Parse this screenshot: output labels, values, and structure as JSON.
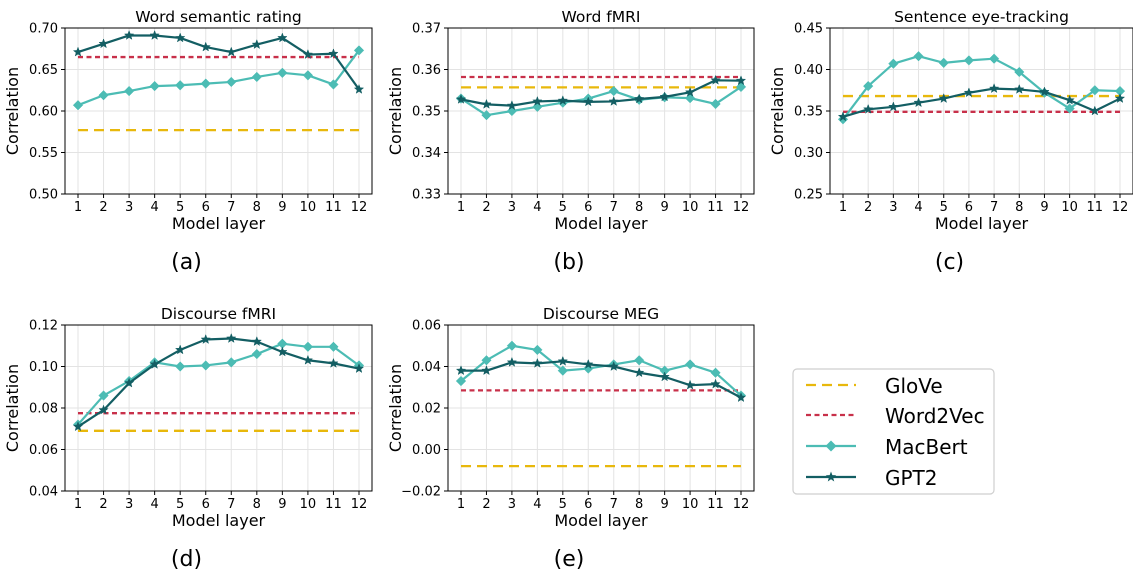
{
  "colors": {
    "glove": "#e8b80c",
    "word2vec": "#c8304a",
    "macbert": "#4cbcb4",
    "gpt2": "#135e63",
    "grid": "#e3e3e3"
  },
  "legend": [
    "GloVe",
    "Word2Vec",
    "MacBert",
    "GPT2"
  ],
  "chart_data": [
    {
      "type": "line",
      "title": "Word semantic rating",
      "panel_label": "(a)",
      "xlabel": "Model layer",
      "ylabel": "Correlation",
      "x": [
        1,
        2,
        3,
        4,
        5,
        6,
        7,
        8,
        9,
        10,
        11,
        12
      ],
      "ylim": [
        0.5,
        0.7
      ],
      "yticks": [
        "0.50",
        "0.55",
        "0.60",
        "0.65",
        "0.70"
      ],
      "grid": true,
      "series": [
        {
          "name": "GloVe",
          "style": "dashed",
          "values": [
            0.577,
            0.577,
            0.577,
            0.577,
            0.577,
            0.577,
            0.577,
            0.577,
            0.577,
            0.577,
            0.577,
            0.577
          ]
        },
        {
          "name": "Word2Vec",
          "style": "dashed",
          "values": [
            0.665,
            0.665,
            0.665,
            0.665,
            0.665,
            0.665,
            0.665,
            0.665,
            0.665,
            0.665,
            0.665,
            0.665
          ]
        },
        {
          "name": "MacBert",
          "marker": "diamond",
          "values": [
            0.607,
            0.619,
            0.624,
            0.63,
            0.631,
            0.633,
            0.635,
            0.641,
            0.646,
            0.643,
            0.632,
            0.673
          ]
        },
        {
          "name": "GPT2",
          "marker": "star",
          "values": [
            0.671,
            0.681,
            0.691,
            0.691,
            0.688,
            0.677,
            0.671,
            0.68,
            0.688,
            0.668,
            0.669,
            0.626
          ]
        }
      ]
    },
    {
      "type": "line",
      "title": "Word fMRI",
      "panel_label": "(b)",
      "xlabel": "Model layer",
      "ylabel": "Correlation",
      "x": [
        1,
        2,
        3,
        4,
        5,
        6,
        7,
        8,
        9,
        10,
        11,
        12
      ],
      "ylim": [
        0.33,
        0.37
      ],
      "yticks": [
        "0.33",
        "0.34",
        "0.35",
        "0.36",
        "0.37"
      ],
      "grid": true,
      "series": [
        {
          "name": "GloVe",
          "style": "dashed",
          "values": [
            0.3557,
            0.3557,
            0.3557,
            0.3557,
            0.3557,
            0.3557,
            0.3557,
            0.3557,
            0.3557,
            0.3557,
            0.3557,
            0.3557
          ]
        },
        {
          "name": "Word2Vec",
          "style": "dashed",
          "values": [
            0.3582,
            0.3582,
            0.3582,
            0.3582,
            0.3582,
            0.3582,
            0.3582,
            0.3582,
            0.3582,
            0.3582,
            0.3582,
            0.3582
          ]
        },
        {
          "name": "MacBert",
          "marker": "diamond",
          "values": [
            0.353,
            0.349,
            0.35,
            0.351,
            0.352,
            0.353,
            0.3548,
            0.3527,
            0.3533,
            0.3531,
            0.3517,
            0.3558
          ]
        },
        {
          "name": "GPT2",
          "marker": "star",
          "values": [
            0.3528,
            0.3516,
            0.3513,
            0.3523,
            0.3525,
            0.3522,
            0.3523,
            0.3529,
            0.3534,
            0.3545,
            0.3574,
            0.3573
          ]
        }
      ]
    },
    {
      "type": "line",
      "title": "Sentence eye-tracking",
      "panel_label": "(c)",
      "xlabel": "Model layer",
      "ylabel": "Correlation",
      "x": [
        1,
        2,
        3,
        4,
        5,
        6,
        7,
        8,
        9,
        10,
        11,
        12
      ],
      "ylim": [
        0.25,
        0.45
      ],
      "yticks": [
        "0.25",
        "0.30",
        "0.35",
        "0.40",
        "0.45"
      ],
      "grid": true,
      "series": [
        {
          "name": "GloVe",
          "style": "dashed",
          "values": [
            0.368,
            0.368,
            0.368,
            0.368,
            0.368,
            0.368,
            0.368,
            0.368,
            0.368,
            0.368,
            0.368,
            0.368
          ]
        },
        {
          "name": "Word2Vec",
          "style": "dashed",
          "values": [
            0.349,
            0.349,
            0.349,
            0.349,
            0.349,
            0.349,
            0.349,
            0.349,
            0.349,
            0.349,
            0.349,
            0.349
          ]
        },
        {
          "name": "MacBert",
          "marker": "diamond",
          "values": [
            0.34,
            0.38,
            0.407,
            0.416,
            0.408,
            0.411,
            0.413,
            0.397,
            0.372,
            0.353,
            0.375,
            0.374
          ]
        },
        {
          "name": "GPT2",
          "marker": "star",
          "values": [
            0.343,
            0.352,
            0.355,
            0.36,
            0.365,
            0.372,
            0.377,
            0.376,
            0.373,
            0.363,
            0.35,
            0.365
          ]
        }
      ]
    },
    {
      "type": "line",
      "title": "Discourse fMRI",
      "panel_label": "(d)",
      "xlabel": "Model layer",
      "ylabel": "Correlation",
      "x": [
        1,
        2,
        3,
        4,
        5,
        6,
        7,
        8,
        9,
        10,
        11,
        12
      ],
      "ylim": [
        0.04,
        0.12
      ],
      "yticks": [
        "0.04",
        "0.06",
        "0.08",
        "0.10",
        "0.12"
      ],
      "grid": true,
      "series": [
        {
          "name": "GloVe",
          "style": "dashed",
          "values": [
            0.069,
            0.069,
            0.069,
            0.069,
            0.069,
            0.069,
            0.069,
            0.069,
            0.069,
            0.069,
            0.069,
            0.069
          ]
        },
        {
          "name": "Word2Vec",
          "style": "dashed",
          "values": [
            0.0775,
            0.0775,
            0.0775,
            0.0775,
            0.0775,
            0.0775,
            0.0775,
            0.0775,
            0.0775,
            0.0775,
            0.0775,
            0.0775
          ]
        },
        {
          "name": "MacBert",
          "marker": "diamond",
          "values": [
            0.072,
            0.086,
            0.093,
            0.102,
            0.1,
            0.1005,
            0.102,
            0.106,
            0.111,
            0.1095,
            0.1095,
            0.1005
          ]
        },
        {
          "name": "GPT2",
          "marker": "star",
          "values": [
            0.071,
            0.079,
            0.092,
            0.101,
            0.108,
            0.113,
            0.1135,
            0.112,
            0.107,
            0.103,
            0.1015,
            0.099
          ]
        }
      ]
    },
    {
      "type": "line",
      "title": "Discourse MEG",
      "panel_label": "(e)",
      "xlabel": "Model layer",
      "ylabel": "Correlation",
      "x": [
        1,
        2,
        3,
        4,
        5,
        6,
        7,
        8,
        9,
        10,
        11,
        12
      ],
      "ylim": [
        -0.02,
        0.06
      ],
      "yticks": [
        "−0.02",
        "0.00",
        "0.02",
        "0.04",
        "0.06"
      ],
      "grid": true,
      "series": [
        {
          "name": "GloVe",
          "style": "dashed",
          "values": [
            -0.008,
            -0.008,
            -0.008,
            -0.008,
            -0.008,
            -0.008,
            -0.008,
            -0.008,
            -0.008,
            -0.008,
            -0.008,
            -0.008
          ]
        },
        {
          "name": "Word2Vec",
          "style": "dashed",
          "values": [
            0.0285,
            0.0285,
            0.0285,
            0.0285,
            0.0285,
            0.0285,
            0.0285,
            0.0285,
            0.0285,
            0.0285,
            0.0285,
            0.0285
          ]
        },
        {
          "name": "MacBert",
          "marker": "diamond",
          "values": [
            0.033,
            0.043,
            0.05,
            0.048,
            0.038,
            0.039,
            0.041,
            0.043,
            0.038,
            0.041,
            0.037,
            0.026
          ]
        },
        {
          "name": "GPT2",
          "marker": "star",
          "values": [
            0.038,
            0.038,
            0.042,
            0.0415,
            0.0425,
            0.041,
            0.04,
            0.037,
            0.035,
            0.031,
            0.0315,
            0.025
          ]
        }
      ]
    }
  ]
}
